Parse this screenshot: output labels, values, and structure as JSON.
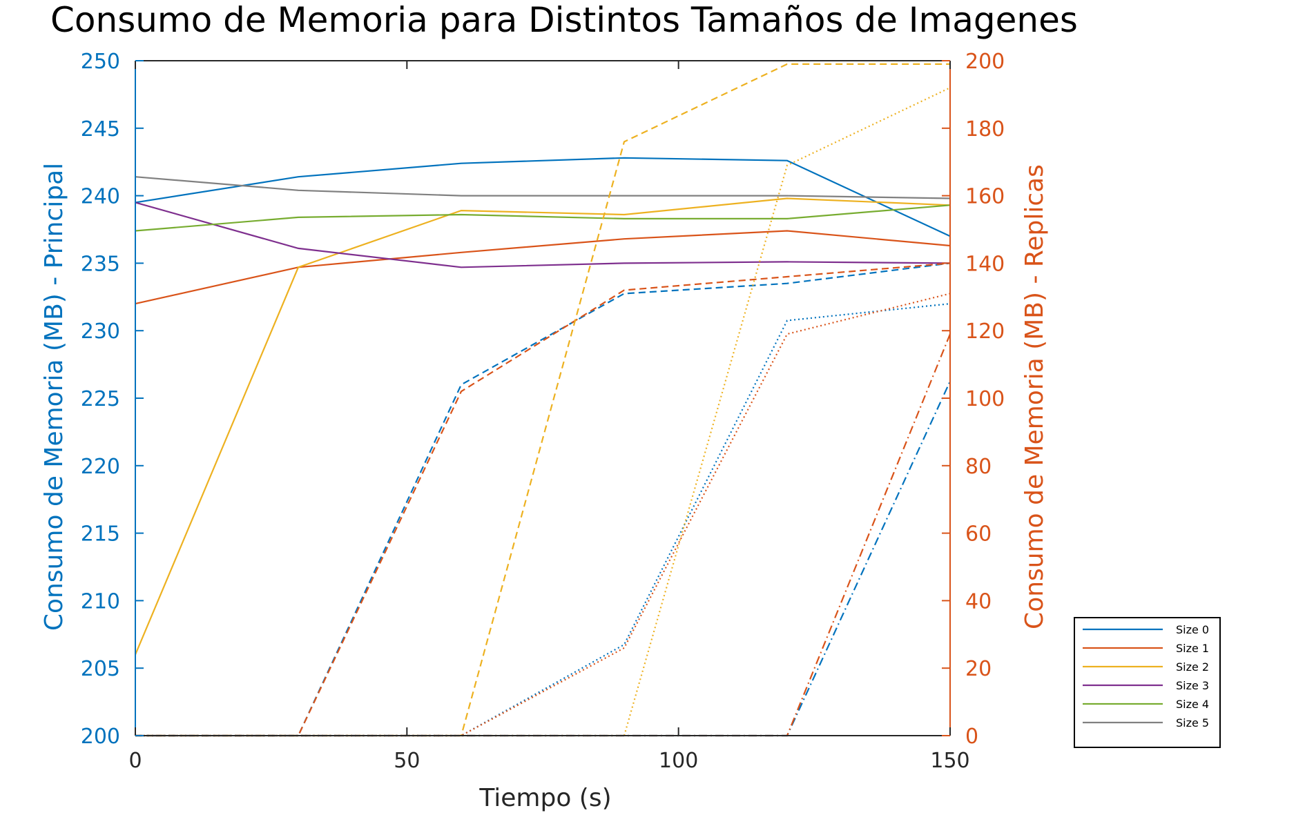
{
  "chart_data": {
    "type": "line",
    "title": "Consumo de Memoria para Distintos Tamaños de Imagenes",
    "xlabel": "Tiempo (s)",
    "ylabel_left": "Consumo de Memoria (MB) - Principal",
    "ylabel_right": "Consumo de Memoria (MB) - Replicas",
    "xlim": [
      0,
      150
    ],
    "ylim_left": [
      200,
      250
    ],
    "ylim_right": [
      0,
      200
    ],
    "x_ticks": [
      0,
      50,
      100,
      150
    ],
    "y_ticks_left": [
      200,
      205,
      210,
      215,
      220,
      225,
      230,
      235,
      240,
      245,
      250
    ],
    "y_ticks_right": [
      0,
      20,
      40,
      60,
      80,
      100,
      120,
      140,
      160,
      180,
      200
    ],
    "grid": false,
    "legend_position": "bottom-right-outside",
    "colors": {
      "left_axis": "#0072BD",
      "right_axis": "#D95319",
      "axis_box": "#262626"
    },
    "x": [
      0,
      30,
      60,
      90,
      120,
      150
    ],
    "series": [
      {
        "name": "Size 0",
        "axis": "left",
        "style": "solid",
        "color": "#0072BD",
        "values": [
          239.5,
          241.4,
          242.4,
          242.8,
          242.6,
          237.0
        ]
      },
      {
        "name": "Size 1",
        "axis": "left",
        "style": "solid",
        "color": "#D95319",
        "values": [
          232.0,
          234.7,
          235.8,
          236.8,
          237.4,
          236.3
        ]
      },
      {
        "name": "Size 2",
        "axis": "left",
        "style": "solid",
        "color": "#EDB120",
        "values": [
          206.0,
          234.7,
          238.9,
          238.6,
          239.8,
          239.3
        ]
      },
      {
        "name": "Size 3",
        "axis": "left",
        "style": "solid",
        "color": "#7E2F8E",
        "values": [
          239.5,
          236.1,
          234.7,
          235.0,
          235.1,
          235.0
        ]
      },
      {
        "name": "Size 4",
        "axis": "left",
        "style": "solid",
        "color": "#77AC30",
        "values": [
          237.4,
          238.4,
          238.6,
          238.3,
          238.3,
          239.3
        ]
      },
      {
        "name": "Size 5",
        "axis": "left",
        "style": "solid",
        "color": "#808080",
        "values": [
          241.4,
          240.4,
          240.0,
          240.0,
          240.0,
          239.8
        ]
      },
      {
        "axis": "right",
        "style": "dashed",
        "color": "#0072BD",
        "values": [
          0,
          0,
          104,
          131,
          134,
          140
        ]
      },
      {
        "axis": "right",
        "style": "dashed",
        "color": "#D95319",
        "values": [
          0,
          0,
          102,
          132,
          136,
          140
        ]
      },
      {
        "axis": "right",
        "style": "dashed",
        "color": "#EDB120",
        "values": [
          0,
          0,
          0,
          176,
          199,
          199
        ]
      },
      {
        "axis": "right",
        "style": "dotted",
        "color": "#0072BD",
        "values": [
          0,
          0,
          0,
          27,
          123,
          128
        ]
      },
      {
        "axis": "right",
        "style": "dotted",
        "color": "#D95319",
        "values": [
          0,
          0,
          0,
          26,
          119,
          131
        ]
      },
      {
        "axis": "right",
        "style": "dotted",
        "color": "#EDB120",
        "values": [
          0,
          0,
          0,
          0,
          169,
          192
        ]
      },
      {
        "axis": "right",
        "style": "dashdot",
        "color": "#0072BD",
        "values": [
          0,
          0,
          0,
          0,
          0,
          105
        ]
      },
      {
        "axis": "right",
        "style": "dashdot",
        "color": "#D95319",
        "values": [
          0,
          0,
          0,
          0,
          0,
          119
        ]
      }
    ]
  }
}
